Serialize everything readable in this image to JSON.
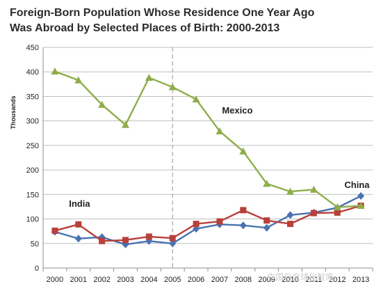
{
  "chart_data": {
    "type": "line",
    "title_line1": "Foreign-Born Population Whose Residence One Year Ago",
    "title_line2": "Was Abroad by Selected Places of Birth: 2000-2013",
    "ylabel": "Thousands",
    "xlabel": "",
    "ylim": [
      0,
      450
    ],
    "yticks": [
      0,
      50,
      100,
      150,
      200,
      250,
      300,
      350,
      400,
      450
    ],
    "categories": [
      "2000",
      "2001",
      "2002",
      "2003",
      "2004",
      "2005",
      "2006",
      "2007",
      "2008",
      "2009",
      "2010",
      "2011",
      "2012",
      "2013"
    ],
    "grid": "horizontal",
    "legend": "none",
    "reference_line": {
      "x": "2005",
      "style": "dashed"
    },
    "series": [
      {
        "name": "Mexico",
        "color": "#8fad4a",
        "marker": "triangle",
        "values": [
          401,
          383,
          333,
          292,
          388,
          369,
          344,
          279,
          238,
          172,
          156,
          160,
          124,
          127
        ]
      },
      {
        "name": "India",
        "color": "#b8403b",
        "marker": "square",
        "values": [
          76,
          89,
          55,
          57,
          64,
          61,
          90,
          95,
          118,
          97,
          90,
          112,
          113,
          127
        ]
      },
      {
        "name": "China",
        "color": "#4a72b0",
        "marker": "diamond",
        "values": [
          74,
          60,
          63,
          48,
          55,
          50,
          80,
          89,
          87,
          82,
          108,
          113,
          123,
          147
        ]
      }
    ]
  },
  "watermark": "中国与全球化智库"
}
